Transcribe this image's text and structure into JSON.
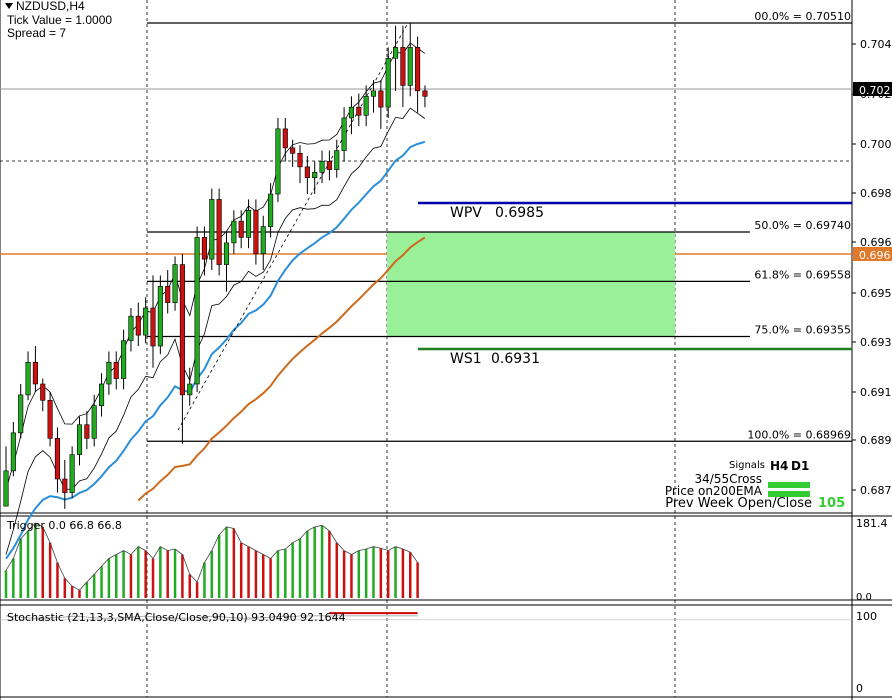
{
  "header": {
    "symbol_line": "NZDUSD,H4",
    "tick_value": "Tick Value = 1.0000",
    "spread": "Spread = 7"
  },
  "price_axis": {
    "labels": [
      "0.704",
      "0.702",
      "0.700",
      "0.698",
      "0.696",
      "0.695",
      "0.693",
      "0.691",
      "0.689",
      "0.687"
    ],
    "current_price": "0.702",
    "orange_line_price": "0.696"
  },
  "fibonacci": [
    {
      "label": "00.0% = 0.70510",
      "price": 0.7051
    },
    {
      "label": "50.0% = 0.69740",
      "price": 0.6974
    },
    {
      "label": "61.8% = 0.69558",
      "price": 0.69558
    },
    {
      "label": "75.0% = 0.69355",
      "price": 0.69355
    },
    {
      "label": "100.0% = 0.68969",
      "price": 0.68969
    }
  ],
  "pivots": [
    {
      "name": "WPV",
      "value": "0.6985",
      "price": 0.6985,
      "color": "#0000aa"
    },
    {
      "name": "WS1",
      "value": "0.6931",
      "price": 0.6931,
      "color": "#1e7e1e"
    }
  ],
  "signals": {
    "title": "Signals",
    "col_h4": "H4",
    "col_d1": "D1",
    "rows": [
      "34/55Cross",
      "Price on200EMA",
      "Prev Week Open/Close"
    ],
    "prev_week_value": "105",
    "active_color": "#33cc33"
  },
  "trigger_panel": {
    "label": "Trigger 0.0 66.8 66.8",
    "axis_top": "181.4",
    "axis_bottom": "0.0"
  },
  "stochastic_panel": {
    "label": "Stochastic (21,13,3,SMA,Close/Close,90,10) 93.0490 92.1644",
    "axis_top": "100",
    "axis_level": "90",
    "axis_bottom": "0"
  },
  "colors": {
    "bull_candle": "#22aa22",
    "bear_candle": "#cc1111",
    "ema_blue": "#2a8fd8",
    "ema_orange": "#cc6a1e",
    "zone_green": "#99f099",
    "orange_level": "#e07a2a"
  },
  "candles": [
    [
      0.6873,
      0.6886,
      0.6873,
      0.6895
    ],
    [
      0.6886,
      0.69,
      0.6884,
      0.6904
    ],
    [
      0.69,
      0.6914,
      0.6898,
      0.6918
    ],
    [
      0.6914,
      0.6926,
      0.6912,
      0.693
    ],
    [
      0.6926,
      0.6918,
      0.6915,
      0.6932
    ],
    [
      0.6918,
      0.6912,
      0.6908,
      0.692
    ],
    [
      0.6912,
      0.6898,
      0.6895,
      0.6915
    ],
    [
      0.6898,
      0.6883,
      0.6878,
      0.6902
    ],
    [
      0.6883,
      0.6878,
      0.6872,
      0.689
    ],
    [
      0.6878,
      0.6892,
      0.6876,
      0.6895
    ],
    [
      0.6892,
      0.6903,
      0.6888,
      0.6906
    ],
    [
      0.6903,
      0.6898,
      0.6894,
      0.6908
    ],
    [
      0.6898,
      0.691,
      0.6895,
      0.6914
    ],
    [
      0.691,
      0.6918,
      0.6906,
      0.6922
    ],
    [
      0.6918,
      0.6926,
      0.6914,
      0.693
    ],
    [
      0.6926,
      0.692,
      0.6916,
      0.693
    ],
    [
      0.692,
      0.6934,
      0.6916,
      0.6938
    ],
    [
      0.6934,
      0.6943,
      0.693,
      0.6946
    ],
    [
      0.6943,
      0.6936,
      0.6932,
      0.6948
    ],
    [
      0.6936,
      0.6946,
      0.6933,
      0.695
    ],
    [
      0.6946,
      0.6932,
      0.6924,
      0.6958
    ],
    [
      0.6932,
      0.6954,
      0.6929,
      0.6958
    ],
    [
      0.6954,
      0.6948,
      0.6944,
      0.696
    ],
    [
      0.6948,
      0.6962,
      0.6945,
      0.6965
    ],
    [
      0.6962,
      0.6914,
      0.6896,
      0.6966
    ],
    [
      0.6914,
      0.6918,
      0.691,
      0.6924
    ],
    [
      0.6918,
      0.6972,
      0.6915,
      0.6976
    ],
    [
      0.6972,
      0.6964,
      0.6958,
      0.6976
    ],
    [
      0.6964,
      0.6986,
      0.696,
      0.699
    ],
    [
      0.6986,
      0.6962,
      0.6958,
      0.699
    ],
    [
      0.6962,
      0.697,
      0.6952,
      0.6974
    ],
    [
      0.697,
      0.6978,
      0.6966,
      0.6982
    ],
    [
      0.6978,
      0.6972,
      0.6968,
      0.6982
    ],
    [
      0.6972,
      0.6982,
      0.6968,
      0.6986
    ],
    [
      0.6982,
      0.6966,
      0.6962,
      0.6986
    ],
    [
      0.6966,
      0.6976,
      0.696,
      0.698
    ],
    [
      0.6976,
      0.6988,
      0.6972,
      0.6992
    ],
    [
      0.6988,
      0.7012,
      0.6985,
      0.7016
    ],
    [
      0.7012,
      0.7005,
      0.7,
      0.7016
    ],
    [
      0.7005,
      0.7003,
      0.6998,
      0.7008
    ],
    [
      0.7003,
      0.6998,
      0.6992,
      0.7006
    ],
    [
      0.6998,
      0.6994,
      0.6988,
      0.7002
    ],
    [
      0.6994,
      0.6996,
      0.6988,
      0.7
    ],
    [
      0.6996,
      0.7,
      0.6992,
      0.7004
    ],
    [
      0.7,
      0.6997,
      0.6993,
      0.7004
    ],
    [
      0.6997,
      0.7004,
      0.6994,
      0.7008
    ],
    [
      0.7004,
      0.7016,
      0.7,
      0.702
    ],
    [
      0.7016,
      0.702,
      0.701,
      0.7024
    ],
    [
      0.702,
      0.7017,
      0.7013,
      0.7025
    ],
    [
      0.7017,
      0.7024,
      0.7013,
      0.7028
    ],
    [
      0.7024,
      0.7026,
      0.7018,
      0.703
    ],
    [
      0.7026,
      0.702,
      0.7012,
      0.703
    ],
    [
      0.702,
      0.7038,
      0.7016,
      0.7042
    ],
    [
      0.7038,
      0.7042,
      0.7026,
      0.705
    ],
    [
      0.7042,
      0.7028,
      0.702,
      0.705
    ],
    [
      0.7028,
      0.7042,
      0.7024,
      0.7051
    ],
    [
      0.7042,
      0.7026,
      0.7018,
      0.7046
    ],
    [
      0.7026,
      0.7024,
      0.702,
      0.7028
    ]
  ],
  "trigger_bars": [
    0.35,
    0.5,
    0.75,
    0.85,
    0.95,
    0.9,
    0.7,
    0.45,
    0.25,
    0.15,
    0.1,
    0.2,
    0.3,
    0.4,
    0.5,
    0.55,
    0.6,
    0.55,
    0.65,
    0.6,
    0.5,
    0.65,
    0.6,
    0.62,
    0.55,
    0.3,
    0.2,
    0.45,
    0.6,
    0.8,
    0.9,
    0.88,
    0.7,
    0.65,
    0.6,
    0.55,
    0.5,
    0.6,
    0.62,
    0.7,
    0.75,
    0.85,
    0.9,
    0.92,
    0.85,
    0.7,
    0.6,
    0.55,
    0.6,
    0.62,
    0.65,
    0.63,
    0.6,
    0.65,
    0.62,
    0.58,
    0.45
  ]
}
